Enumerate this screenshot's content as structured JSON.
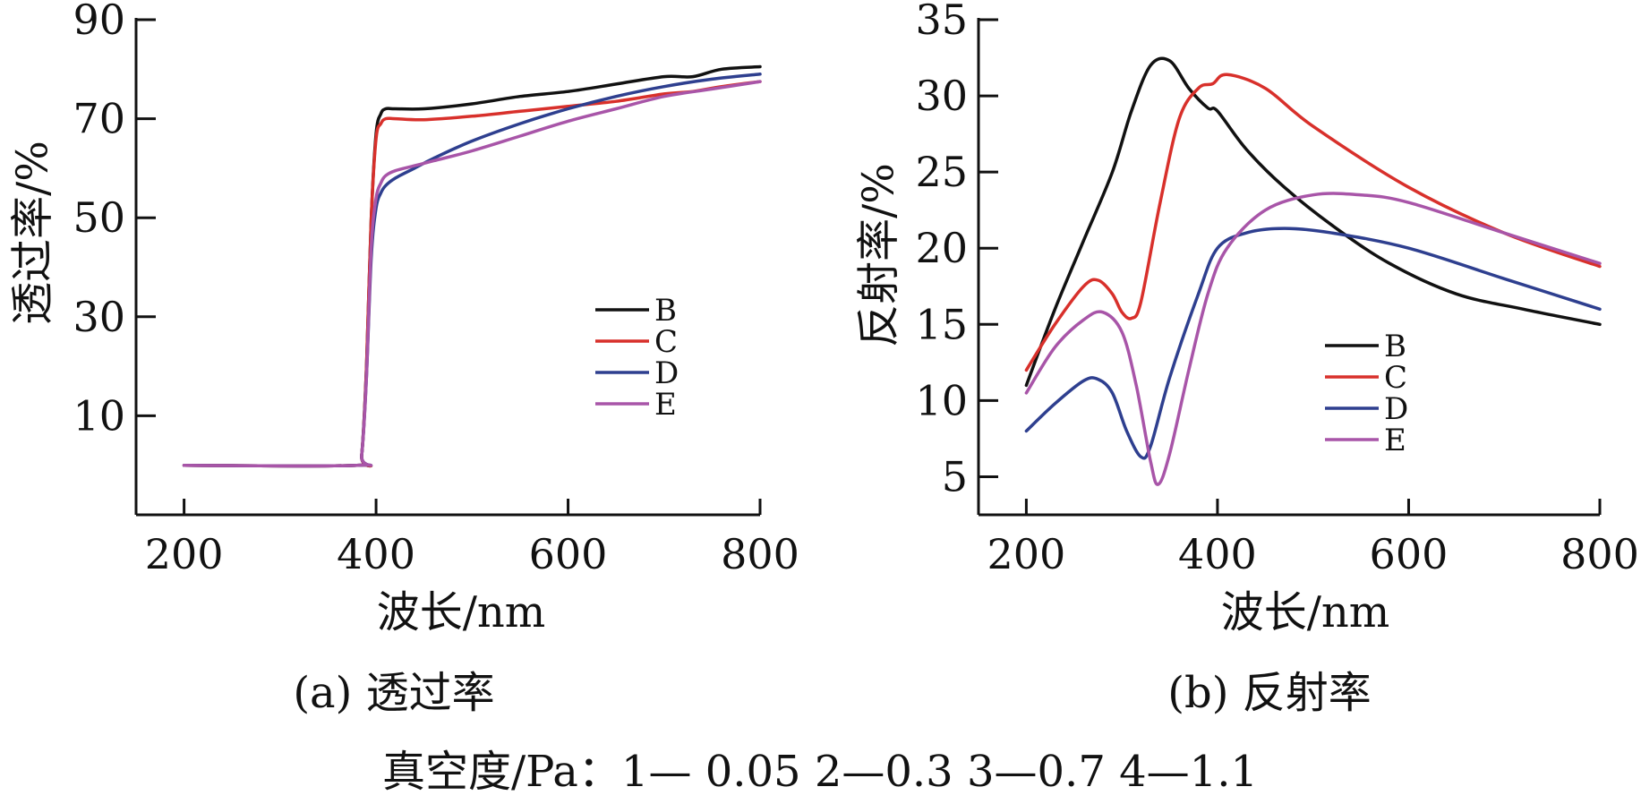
{
  "chart_data": [
    {
      "type": "line",
      "caption": "(a) 透过率",
      "xlabel": "波长/nm",
      "ylabel": "透过率/%",
      "xlim": [
        150,
        800
      ],
      "ylim": [
        -10,
        90
      ],
      "xticks": [
        200,
        400,
        600,
        800
      ],
      "yticks": [
        10,
        30,
        50,
        70,
        90
      ],
      "legend_position": "lower-right",
      "series": [
        {
          "name": "B",
          "color": "#111111",
          "x": [
            200,
            380,
            385,
            390,
            395,
            400,
            405,
            410,
            420,
            450,
            500,
            550,
            600,
            650,
            700,
            730,
            760,
            800
          ],
          "y": [
            0,
            0,
            2,
            20,
            50,
            67,
            71,
            72,
            72,
            72,
            73,
            74.5,
            75.5,
            77,
            78.5,
            78.5,
            80,
            80.5
          ]
        },
        {
          "name": "C",
          "color": "#d8302b",
          "x": [
            200,
            380,
            385,
            390,
            395,
            400,
            405,
            410,
            420,
            450,
            500,
            550,
            600,
            650,
            700,
            730,
            760,
            800
          ],
          "y": [
            0,
            0,
            2,
            20,
            50,
            66,
            69,
            70,
            70,
            69.8,
            70.5,
            71.5,
            72.5,
            73.5,
            75,
            75.5,
            76.5,
            77.5
          ]
        },
        {
          "name": "D",
          "color": "#2e3f8f",
          "x": [
            200,
            380,
            385,
            390,
            395,
            400,
            405,
            410,
            420,
            440,
            460,
            500,
            550,
            600,
            650,
            700,
            750,
            800
          ],
          "y": [
            0,
            0,
            2,
            18,
            42,
            52,
            55,
            56.5,
            58,
            60,
            62,
            65.5,
            69,
            72,
            74.5,
            76.5,
            78,
            79
          ]
        },
        {
          "name": "E",
          "color": "#a855a8",
          "x": [
            200,
            380,
            385,
            390,
            395,
            400,
            405,
            410,
            420,
            440,
            460,
            500,
            550,
            600,
            650,
            700,
            750,
            800
          ],
          "y": [
            0,
            0,
            2,
            18,
            44,
            54,
            57,
            58.5,
            59.5,
            60.5,
            61.5,
            63.5,
            66.5,
            69.5,
            72,
            74.5,
            76,
            77.5
          ]
        }
      ]
    },
    {
      "type": "line",
      "caption": "(b) 反射率",
      "xlabel": "波长/nm",
      "ylabel": "反射率/%",
      "xlim": [
        150,
        800
      ],
      "ylim": [
        2.5,
        35
      ],
      "xticks": [
        200,
        400,
        600,
        800
      ],
      "yticks": [
        5,
        10,
        15,
        20,
        25,
        30,
        35
      ],
      "legend_position": "lower-center-right",
      "series": [
        {
          "name": "B",
          "color": "#111111",
          "x": [
            200,
            230,
            260,
            290,
            310,
            330,
            350,
            370,
            390,
            400,
            430,
            470,
            520,
            580,
            650,
            720,
            800
          ],
          "y": [
            11,
            16,
            20.5,
            25,
            29,
            32,
            32.3,
            30.5,
            29.2,
            29,
            26.5,
            24,
            21.5,
            19,
            17,
            16,
            15
          ]
        },
        {
          "name": "C",
          "color": "#d8302b",
          "x": [
            200,
            230,
            260,
            275,
            290,
            300,
            310,
            320,
            340,
            360,
            380,
            395,
            410,
            450,
            500,
            600,
            700,
            800
          ],
          "y": [
            12,
            15,
            17.5,
            17.9,
            17,
            15.8,
            15.4,
            16.5,
            23,
            28.5,
            30.5,
            30.8,
            31.4,
            30.5,
            28,
            24,
            21,
            18.8
          ]
        },
        {
          "name": "D",
          "color": "#2e3f8f",
          "x": [
            200,
            230,
            260,
            275,
            290,
            305,
            320,
            330,
            350,
            380,
            400,
            430,
            470,
            520,
            600,
            700,
            800
          ],
          "y": [
            8,
            9.8,
            11.3,
            11.4,
            10.5,
            8,
            6.3,
            7,
            11.5,
            17,
            20,
            21,
            21.3,
            21,
            20,
            18,
            16
          ]
        },
        {
          "name": "E",
          "color": "#a855a8",
          "x": [
            200,
            230,
            260,
            280,
            300,
            315,
            330,
            338,
            350,
            370,
            390,
            410,
            450,
            500,
            550,
            600,
            700,
            800
          ],
          "y": [
            10.5,
            13.5,
            15.3,
            15.8,
            14.5,
            11,
            6,
            4.5,
            6.5,
            12,
            17,
            20,
            22.5,
            23.5,
            23.5,
            23,
            21,
            19
          ]
        }
      ]
    }
  ],
  "footer": {
    "text": "真空度/Pa：1— 0.05    2—0.3    3—0.7    4—1.1"
  }
}
